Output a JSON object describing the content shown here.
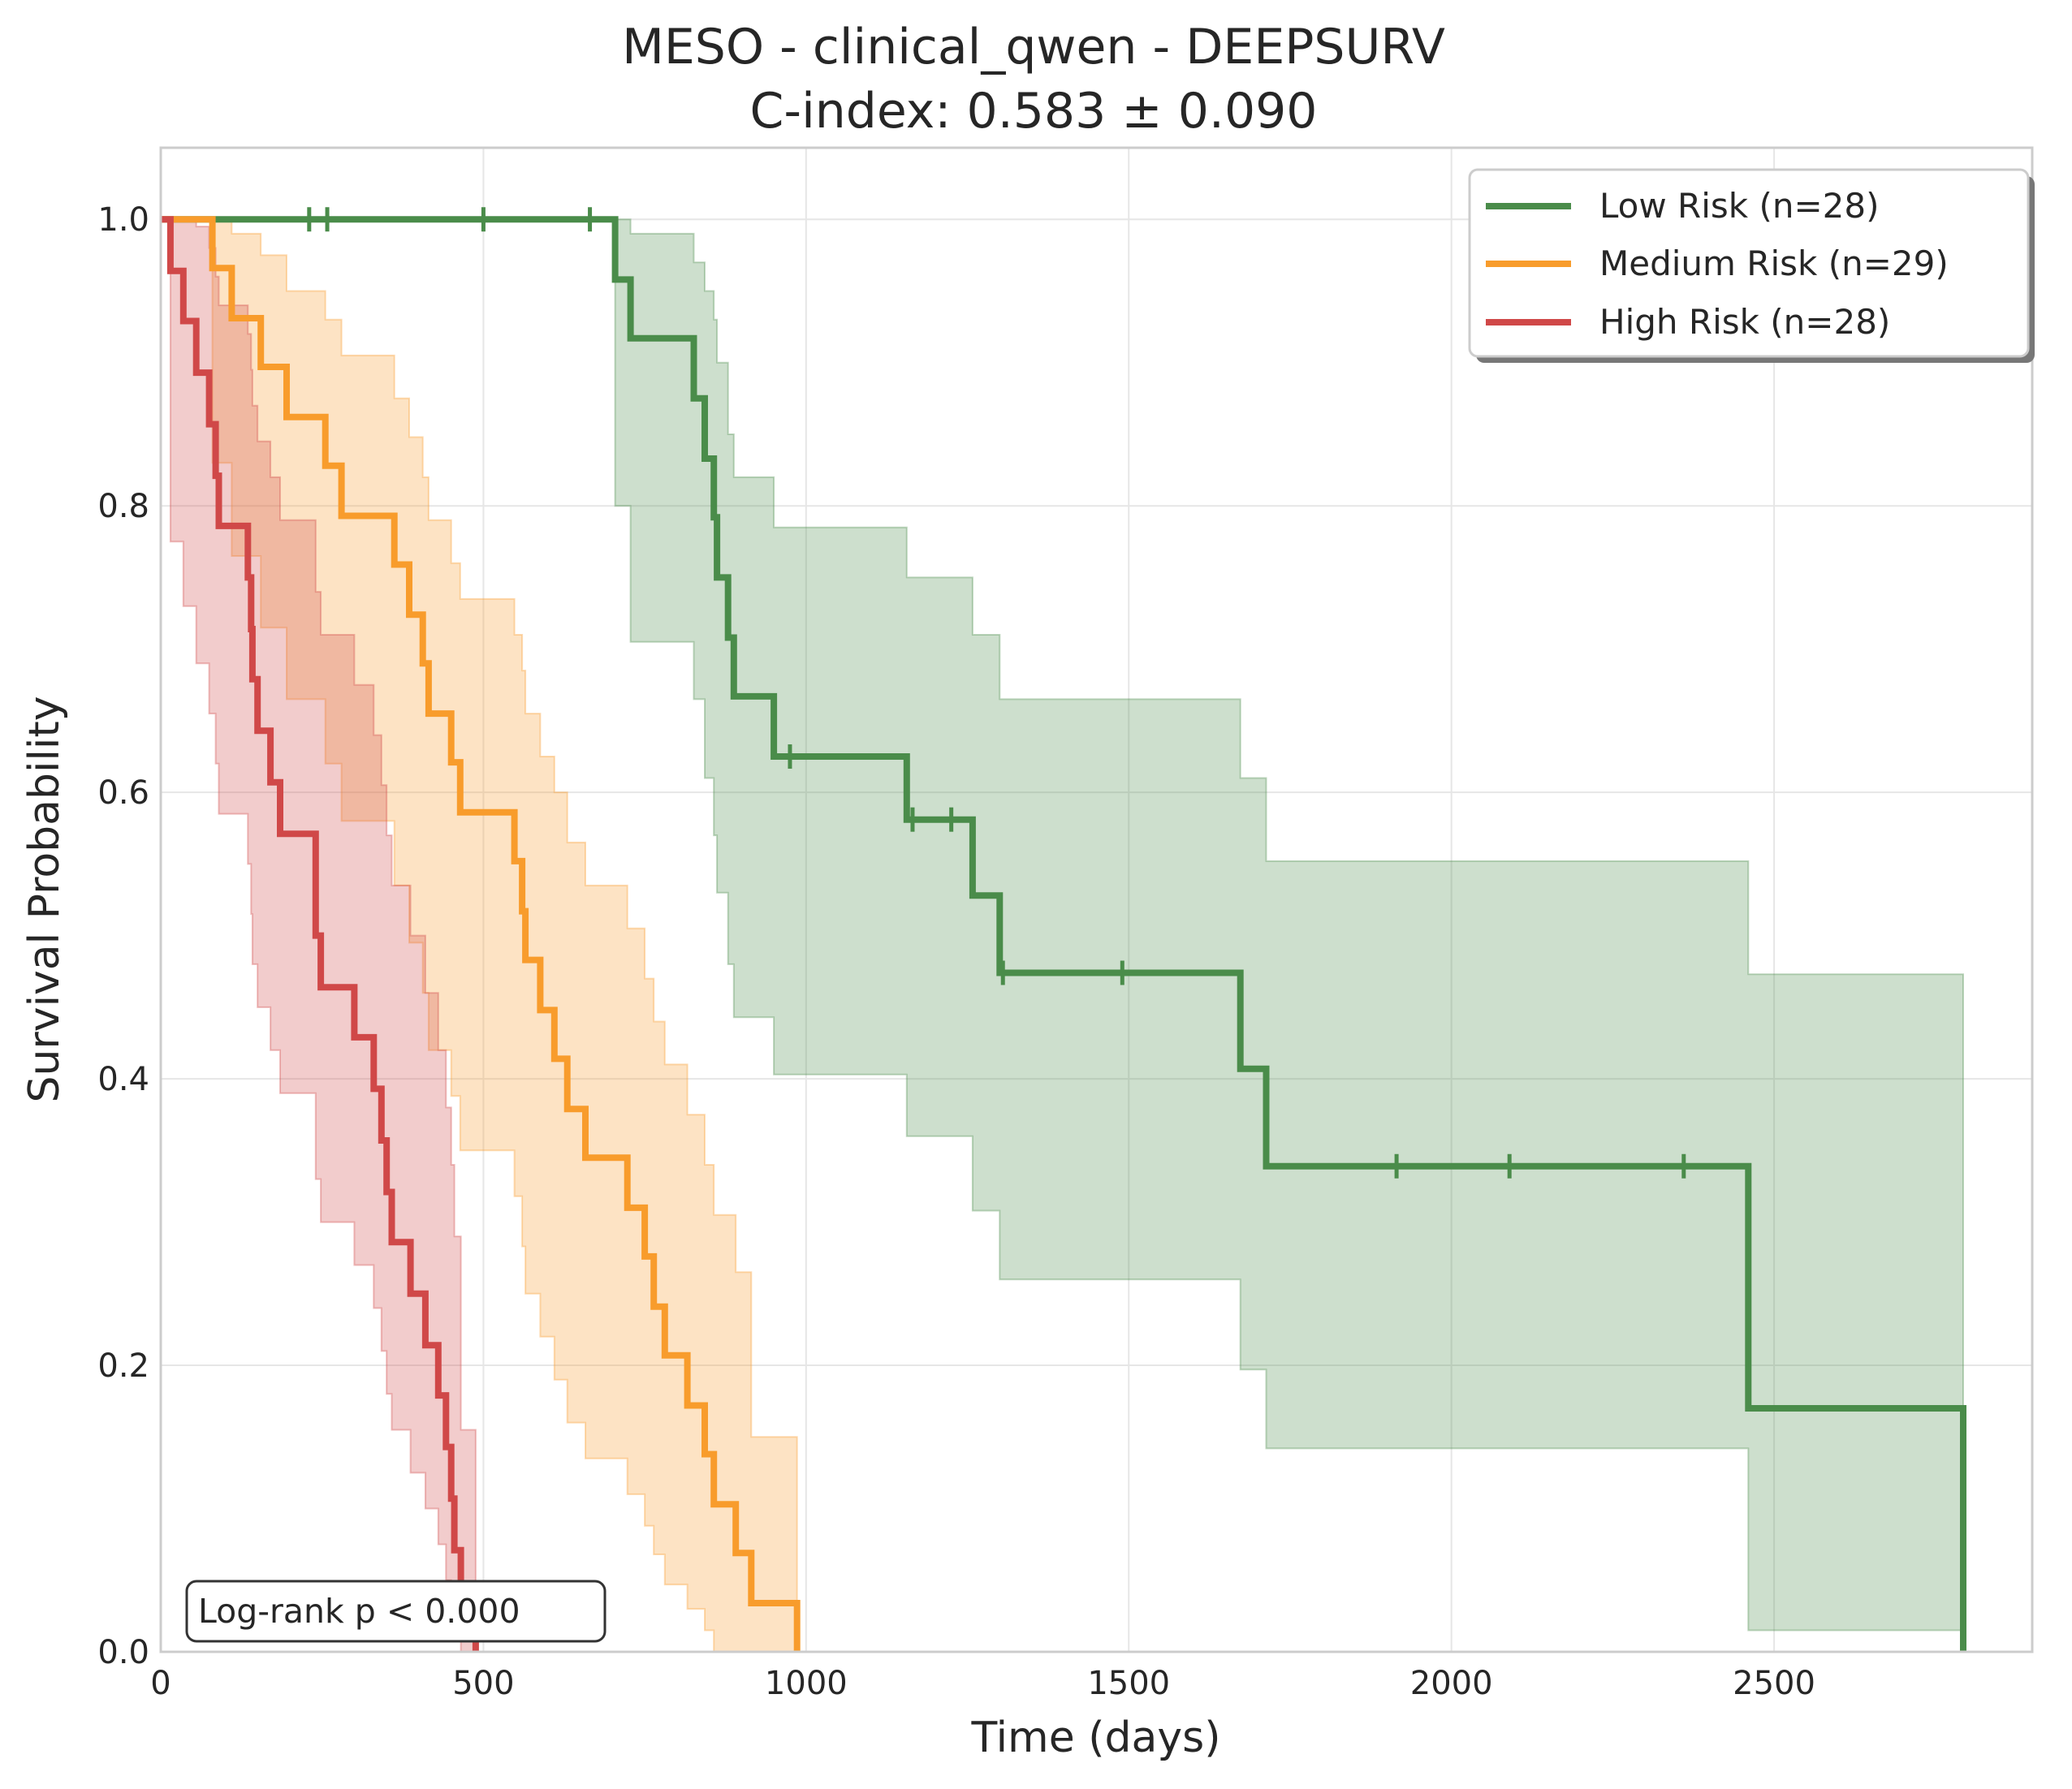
{
  "title": {
    "line1": "MESO - clinical_qwen - DEEPSURV",
    "line2": "C-index: 0.583 ± 0.090"
  },
  "axes": {
    "xlabel": "Time (days)",
    "ylabel": "Survival Probability",
    "xlim": [
      0,
      2900
    ],
    "ylim": [
      0,
      1.05
    ],
    "x_ticks": [
      "0",
      "500",
      "1000",
      "1500",
      "2000",
      "2500"
    ],
    "y_ticks": [
      "0.0",
      "0.2",
      "0.4",
      "0.6",
      "0.8",
      "1.0"
    ]
  },
  "annotation": "Log-rank p < 0.000",
  "colors": {
    "low": "#4a8c4a",
    "medium": "#f89c2c",
    "high": "#d04848",
    "grid": "#e6e6e6",
    "frame": "#cccccc"
  },
  "chart_data": {
    "type": "line",
    "subtype": "kaplan-meier step curves with confidence bands and censor marks",
    "title": "MESO - clinical_qwen - DEEPSURV C-index: 0.583 ± 0.090",
    "xlabel": "Time (days)",
    "ylabel": "Survival Probability",
    "xlim": [
      0,
      2900
    ],
    "ylim": [
      0,
      1.05
    ],
    "grid": true,
    "legend_position": "top-right",
    "series": [
      {
        "key": "low",
        "name": "Low Risk (n=28)",
        "color": "#4a8c4a",
        "steps": [
          [
            0,
            1.0
          ],
          [
            704,
            0.958
          ],
          [
            728,
            0.917
          ],
          [
            826,
            0.875
          ],
          [
            843,
            0.833
          ],
          [
            857,
            0.792
          ],
          [
            862,
            0.75
          ],
          [
            879,
            0.708
          ],
          [
            888,
            0.667
          ],
          [
            950,
            0.625
          ],
          [
            1156,
            0.581
          ],
          [
            1258,
            0.528
          ],
          [
            1300,
            0.474
          ],
          [
            1673,
            0.407
          ],
          [
            1713,
            0.339
          ],
          [
            2460,
            0.17
          ],
          [
            2793,
            0.0
          ]
        ],
        "end_x": 2793,
        "ci_upper": [
          [
            0,
            1.0
          ],
          [
            704,
            1.0
          ],
          [
            728,
            0.99
          ],
          [
            826,
            0.97
          ],
          [
            843,
            0.95
          ],
          [
            857,
            0.93
          ],
          [
            862,
            0.9
          ],
          [
            879,
            0.85
          ],
          [
            888,
            0.82
          ],
          [
            950,
            0.785
          ],
          [
            1156,
            0.75
          ],
          [
            1258,
            0.71
          ],
          [
            1300,
            0.665
          ],
          [
            1673,
            0.61
          ],
          [
            1713,
            0.552
          ],
          [
            2460,
            0.473
          ],
          [
            2793,
            0.473
          ]
        ],
        "ci_lower": [
          [
            0,
            1.0
          ],
          [
            704,
            0.8
          ],
          [
            728,
            0.705
          ],
          [
            826,
            0.665
          ],
          [
            843,
            0.61
          ],
          [
            857,
            0.57
          ],
          [
            862,
            0.53
          ],
          [
            879,
            0.48
          ],
          [
            888,
            0.443
          ],
          [
            950,
            0.403
          ],
          [
            1156,
            0.36
          ],
          [
            1258,
            0.308
          ],
          [
            1300,
            0.26
          ],
          [
            1673,
            0.197
          ],
          [
            1713,
            0.142
          ],
          [
            2460,
            0.015
          ],
          [
            2793,
            0.015
          ]
        ],
        "censor_times": [
          230,
          258,
          500,
          665,
          975,
          1165,
          1225,
          1305,
          1490,
          1915,
          2090,
          2360
        ]
      },
      {
        "key": "medium",
        "name": "Medium Risk (n=29)",
        "color": "#f89c2c",
        "steps": [
          [
            0,
            1.0
          ],
          [
            80,
            0.966
          ],
          [
            110,
            0.931
          ],
          [
            155,
            0.897
          ],
          [
            195,
            0.862
          ],
          [
            255,
            0.828
          ],
          [
            280,
            0.793
          ],
          [
            362,
            0.759
          ],
          [
            385,
            0.724
          ],
          [
            406,
            0.69
          ],
          [
            415,
            0.655
          ],
          [
            450,
            0.621
          ],
          [
            464,
            0.586
          ],
          [
            548,
            0.552
          ],
          [
            560,
            0.517
          ],
          [
            565,
            0.483
          ],
          [
            588,
            0.448
          ],
          [
            610,
            0.414
          ],
          [
            630,
            0.379
          ],
          [
            658,
            0.345
          ],
          [
            723,
            0.31
          ],
          [
            750,
            0.276
          ],
          [
            764,
            0.241
          ],
          [
            781,
            0.207
          ],
          [
            816,
            0.172
          ],
          [
            843,
            0.138
          ],
          [
            857,
            0.103
          ],
          [
            891,
            0.069
          ],
          [
            915,
            0.034
          ],
          [
            986,
            0.0
          ]
        ],
        "end_x": 986,
        "ci_upper": [
          [
            0,
            1.0
          ],
          [
            80,
            1.0
          ],
          [
            110,
            0.99
          ],
          [
            155,
            0.975
          ],
          [
            195,
            0.95
          ],
          [
            255,
            0.93
          ],
          [
            280,
            0.905
          ],
          [
            362,
            0.875
          ],
          [
            385,
            0.848
          ],
          [
            406,
            0.82
          ],
          [
            415,
            0.79
          ],
          [
            450,
            0.76
          ],
          [
            464,
            0.735
          ],
          [
            548,
            0.71
          ],
          [
            560,
            0.685
          ],
          [
            565,
            0.655
          ],
          [
            588,
            0.625
          ],
          [
            610,
            0.6
          ],
          [
            630,
            0.565
          ],
          [
            658,
            0.535
          ],
          [
            723,
            0.505
          ],
          [
            750,
            0.47
          ],
          [
            764,
            0.44
          ],
          [
            781,
            0.41
          ],
          [
            816,
            0.375
          ],
          [
            843,
            0.34
          ],
          [
            857,
            0.305
          ],
          [
            891,
            0.265
          ],
          [
            915,
            0.15
          ],
          [
            986,
            0.15
          ]
        ],
        "ci_lower": [
          [
            0,
            1.0
          ],
          [
            80,
            0.83
          ],
          [
            110,
            0.765
          ],
          [
            155,
            0.715
          ],
          [
            195,
            0.665
          ],
          [
            255,
            0.62
          ],
          [
            280,
            0.58
          ],
          [
            362,
            0.535
          ],
          [
            385,
            0.495
          ],
          [
            406,
            0.46
          ],
          [
            415,
            0.42
          ],
          [
            450,
            0.388
          ],
          [
            464,
            0.35
          ],
          [
            548,
            0.318
          ],
          [
            560,
            0.283
          ],
          [
            565,
            0.25
          ],
          [
            588,
            0.22
          ],
          [
            610,
            0.19
          ],
          [
            630,
            0.16
          ],
          [
            658,
            0.135
          ],
          [
            723,
            0.11
          ],
          [
            750,
            0.088
          ],
          [
            764,
            0.068
          ],
          [
            781,
            0.047
          ],
          [
            816,
            0.03
          ],
          [
            843,
            0.015
          ],
          [
            857,
            0.0
          ],
          [
            891,
            0.0
          ],
          [
            915,
            0.0
          ],
          [
            986,
            0.0
          ]
        ],
        "censor_times": []
      },
      {
        "key": "high",
        "name": "High Risk (n=28)",
        "color": "#d04848",
        "steps": [
          [
            0,
            1.0
          ],
          [
            15,
            0.964
          ],
          [
            35,
            0.929
          ],
          [
            55,
            0.893
          ],
          [
            75,
            0.857
          ],
          [
            85,
            0.821
          ],
          [
            90,
            0.786
          ],
          [
            135,
            0.75
          ],
          [
            140,
            0.714
          ],
          [
            142,
            0.679
          ],
          [
            150,
            0.643
          ],
          [
            170,
            0.607
          ],
          [
            185,
            0.571
          ],
          [
            240,
            0.5
          ],
          [
            248,
            0.464
          ],
          [
            300,
            0.429
          ],
          [
            330,
            0.393
          ],
          [
            342,
            0.357
          ],
          [
            350,
            0.321
          ],
          [
            358,
            0.286
          ],
          [
            387,
            0.25
          ],
          [
            410,
            0.214
          ],
          [
            430,
            0.179
          ],
          [
            442,
            0.143
          ],
          [
            450,
            0.107
          ],
          [
            455,
            0.071
          ],
          [
            465,
            0.036
          ],
          [
            488,
            0.0
          ]
        ],
        "end_x": 488,
        "ci_upper": [
          [
            0,
            1.0
          ],
          [
            15,
            1.0
          ],
          [
            35,
            1.0
          ],
          [
            55,
            0.995
          ],
          [
            75,
            0.98
          ],
          [
            85,
            0.96
          ],
          [
            90,
            0.94
          ],
          [
            135,
            0.92
          ],
          [
            140,
            0.895
          ],
          [
            142,
            0.87
          ],
          [
            150,
            0.845
          ],
          [
            170,
            0.82
          ],
          [
            185,
            0.79
          ],
          [
            240,
            0.74
          ],
          [
            248,
            0.71
          ],
          [
            300,
            0.675
          ],
          [
            330,
            0.64
          ],
          [
            342,
            0.605
          ],
          [
            350,
            0.57
          ],
          [
            358,
            0.535
          ],
          [
            387,
            0.5
          ],
          [
            410,
            0.46
          ],
          [
            430,
            0.42
          ],
          [
            442,
            0.38
          ],
          [
            450,
            0.34
          ],
          [
            455,
            0.29
          ],
          [
            465,
            0.155
          ],
          [
            488,
            0.155
          ]
        ],
        "ci_lower": [
          [
            0,
            1.0
          ],
          [
            15,
            0.775
          ],
          [
            35,
            0.73
          ],
          [
            55,
            0.69
          ],
          [
            75,
            0.655
          ],
          [
            85,
            0.62
          ],
          [
            90,
            0.585
          ],
          [
            135,
            0.55
          ],
          [
            140,
            0.515
          ],
          [
            142,
            0.48
          ],
          [
            150,
            0.45
          ],
          [
            170,
            0.42
          ],
          [
            185,
            0.39
          ],
          [
            240,
            0.33
          ],
          [
            248,
            0.3
          ],
          [
            300,
            0.27
          ],
          [
            330,
            0.24
          ],
          [
            342,
            0.21
          ],
          [
            350,
            0.18
          ],
          [
            358,
            0.155
          ],
          [
            387,
            0.125
          ],
          [
            410,
            0.1
          ],
          [
            430,
            0.075
          ],
          [
            442,
            0.05
          ],
          [
            450,
            0.03
          ],
          [
            455,
            0.012
          ],
          [
            465,
            0.0
          ],
          [
            488,
            0.0
          ]
        ],
        "censor_times": []
      }
    ]
  }
}
